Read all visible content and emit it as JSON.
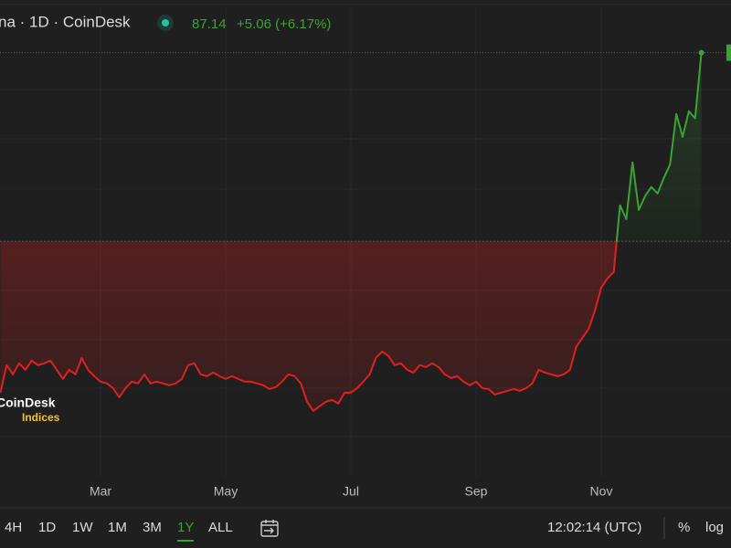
{
  "header": {
    "symbol": "na · 1D · CoinDesk",
    "price": "87.14",
    "change": "+5.06 (+6.17%)"
  },
  "chart_data": {
    "type": "baseline",
    "categories": [
      null,
      null,
      null,
      null,
      null,
      null,
      null,
      null,
      null,
      null,
      null,
      null,
      null,
      null,
      null,
      null,
      "Mar",
      null,
      null,
      null,
      null,
      null,
      null,
      null,
      null,
      null,
      null,
      null,
      null,
      null,
      null,
      null,
      null,
      null,
      null,
      null,
      "May",
      null,
      null,
      null,
      null,
      null,
      null,
      null,
      null,
      null,
      null,
      null,
      null,
      null,
      null,
      null,
      null,
      null,
      null,
      null,
      "Jul",
      null,
      null,
      null,
      null,
      null,
      null,
      null,
      null,
      null,
      null,
      null,
      null,
      null,
      null,
      null,
      null,
      null,
      null,
      null,
      "Sep",
      null,
      null,
      null,
      null,
      null,
      null,
      null,
      null,
      null,
      null,
      null,
      null,
      null,
      null,
      null,
      null,
      null,
      null,
      null,
      "Nov",
      null,
      null,
      null,
      null,
      null,
      null,
      null,
      null,
      null,
      null,
      null,
      null,
      null,
      null,
      null,
      null
    ],
    "values": [
      60.94,
      63.06,
      62.35,
      63.2,
      62.7,
      63.41,
      63.06,
      63.2,
      63.41,
      62.7,
      62.0,
      62.7,
      62.35,
      63.62,
      62.7,
      62.21,
      61.79,
      61.65,
      61.29,
      60.59,
      61.29,
      61.79,
      61.65,
      62.35,
      61.65,
      61.79,
      61.65,
      61.51,
      61.65,
      62.0,
      63.06,
      63.2,
      62.35,
      62.21,
      62.49,
      62.21,
      62.0,
      62.21,
      62.0,
      61.79,
      61.79,
      61.65,
      61.51,
      61.22,
      61.37,
      61.79,
      62.35,
      62.21,
      61.65,
      60.24,
      59.53,
      59.89,
      60.24,
      60.38,
      60.1,
      60.94,
      60.94,
      61.29,
      61.79,
      62.35,
      63.62,
      64.11,
      63.76,
      63.06,
      63.2,
      62.7,
      62.49,
      63.06,
      62.91,
      63.2,
      62.91,
      62.35,
      62.07,
      62.21,
      61.79,
      61.51,
      61.79,
      61.29,
      61.22,
      60.8,
      60.94,
      61.08,
      61.22,
      61.08,
      61.29,
      61.65,
      62.7,
      62.49,
      62.35,
      62.21,
      62.35,
      62.7,
      64.46,
      65.17,
      65.87,
      67.28,
      69.04,
      69.75,
      70.24,
      75.38,
      74.32,
      78.69,
      75.03,
      76.08,
      76.79,
      76.29,
      77.49,
      78.55,
      82.42,
      80.66,
      82.63,
      82.08,
      87.14
    ],
    "baseline": 72.6,
    "ylim": [
      54.46,
      91.2
    ],
    "up_color": "#3aa335",
    "down_color": "#e0201e",
    "grid": true
  },
  "logo": {
    "name": "CoinDesk",
    "sub": "Indices"
  },
  "toolbar": {
    "intervals": [
      "4H",
      "1D",
      "1W",
      "1M",
      "3M",
      "1Y",
      "ALL"
    ],
    "active": 5,
    "time": "12:02:14 (UTC)",
    "percent": "%",
    "log": "log"
  }
}
